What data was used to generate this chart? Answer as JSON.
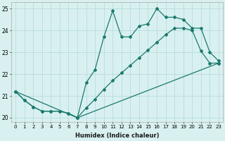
{
  "xlabel": "Humidex (Indice chaleur)",
  "background_color": "#d9f0f0",
  "grid_color": "#b0d8d8",
  "line_color": "#1a7a6e",
  "xlim": [
    -0.5,
    23.5
  ],
  "ylim": [
    19.8,
    25.3
  ],
  "xticks": [
    0,
    1,
    2,
    3,
    4,
    5,
    6,
    7,
    8,
    9,
    10,
    11,
    12,
    13,
    14,
    15,
    16,
    17,
    18,
    19,
    20,
    21,
    22,
    23
  ],
  "yticks": [
    20,
    21,
    22,
    23,
    24,
    25
  ],
  "series1_x": [
    0,
    1,
    2,
    3,
    4,
    5,
    6,
    7,
    8,
    9,
    10,
    11,
    12,
    13,
    14,
    15,
    16,
    17,
    18,
    19,
    20,
    21,
    22,
    23
  ],
  "series1_y": [
    21.2,
    20.8,
    20.5,
    20.3,
    20.3,
    20.3,
    20.2,
    20.0,
    20.45,
    20.85,
    21.3,
    21.7,
    22.05,
    22.4,
    22.75,
    23.1,
    23.45,
    23.8,
    24.1,
    24.1,
    24.0,
    23.05,
    22.5,
    22.5
  ],
  "series2_x": [
    0,
    1,
    2,
    3,
    4,
    5,
    6,
    7,
    8,
    9,
    10,
    11,
    12,
    13,
    14,
    15,
    16,
    17,
    18,
    19,
    20,
    21,
    22,
    23
  ],
  "series2_y": [
    21.2,
    20.8,
    20.5,
    20.3,
    20.3,
    20.3,
    20.2,
    20.0,
    21.6,
    22.2,
    23.7,
    24.9,
    23.7,
    23.7,
    24.2,
    24.3,
    25.0,
    24.6,
    24.6,
    24.5,
    24.1,
    24.1,
    23.0,
    22.6
  ],
  "series3_x": [
    0,
    7,
    23
  ],
  "series3_y": [
    21.2,
    20.0,
    22.5
  ]
}
